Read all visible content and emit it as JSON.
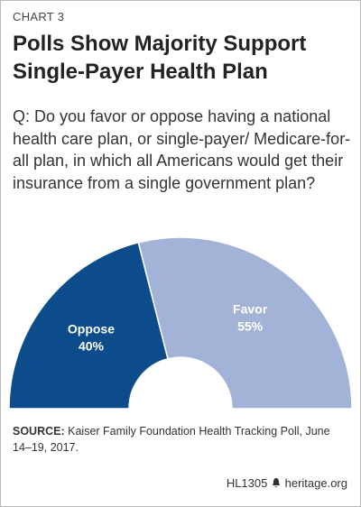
{
  "chart_data": {
    "type": "half-donut",
    "label": "CHART 3",
    "title": "Polls Show Majority Support Single-Payer Health Plan",
    "subtitle": "Q: Do you favor or oppose having a national health care plan, or single-payer/ Medicare-for-all plan, in which all Americans would get their insurance from a single government plan?",
    "categories": [
      "Oppose",
      "Favor"
    ],
    "values": [
      40,
      55
    ],
    "value_labels": [
      "40%",
      "55%"
    ],
    "colors": [
      "#0d4c8b",
      "#a3b3d8"
    ],
    "source_label": "SOURCE:",
    "source": "Kaiser Family Foundation Health Tracking Poll, June 14–19, 2017.",
    "chart_id": "HL1305",
    "site": "heritage.org"
  }
}
